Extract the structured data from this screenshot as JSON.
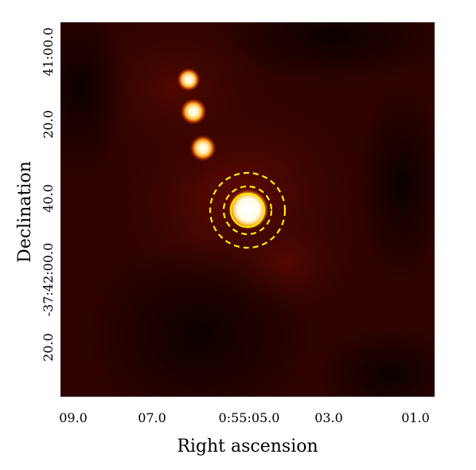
{
  "image": {
    "type": "astronomy-sky-map",
    "colormap": "afmhot",
    "x_axis": {
      "label": "Right ascension",
      "ticks": [
        "09.0",
        "07.0",
        "0:55:05.0",
        "03.0",
        "01.0"
      ]
    },
    "y_axis": {
      "label": "Declination",
      "ticks": [
        "41:00.0",
        "20.0",
        "40.0",
        "-37:42:00.0",
        "20.0"
      ]
    },
    "regions": {
      "aperture_style": "solid",
      "annulus_style": "dashed",
      "color": "#ffee00"
    }
  }
}
